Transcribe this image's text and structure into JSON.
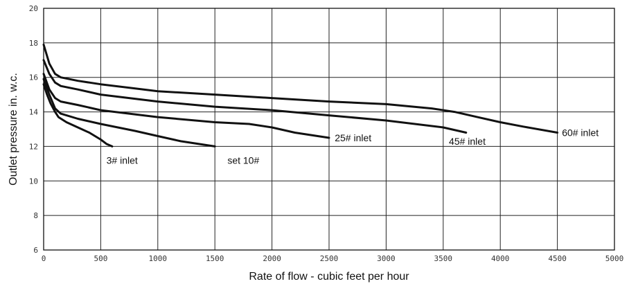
{
  "chart_data": {
    "type": "line",
    "xlabel": "Rate of flow - cubic feet per hour",
    "ylabel": "Outlet pressure in. w.c.",
    "xlim": [
      0,
      5000
    ],
    "ylim": [
      6,
      20
    ],
    "x_ticks": [
      0,
      500,
      1000,
      1500,
      2000,
      2500,
      3000,
      3500,
      4000,
      4500,
      5000
    ],
    "y_ticks": [
      6,
      8,
      10,
      12,
      14,
      16,
      18,
      20
    ],
    "grid": true,
    "series": [
      {
        "name": "3# inlet",
        "x": [
          0,
          30,
          60,
          100,
          130,
          200,
          300,
          400,
          500,
          550,
          600
        ],
        "y": [
          15.6,
          15.0,
          14.5,
          14.0,
          13.7,
          13.4,
          13.1,
          12.8,
          12.4,
          12.15,
          12.0
        ]
      },
      {
        "name": "set 10#",
        "x": [
          0,
          50,
          100,
          150,
          300,
          500,
          800,
          1000,
          1200,
          1400,
          1500
        ],
        "y": [
          15.9,
          15.0,
          14.2,
          13.9,
          13.6,
          13.3,
          12.9,
          12.6,
          12.3,
          12.1,
          12.0
        ]
      },
      {
        "name": "25# inlet",
        "x": [
          0,
          50,
          100,
          150,
          300,
          500,
          1000,
          1500,
          1800,
          2000,
          2200,
          2500
        ],
        "y": [
          16.2,
          15.3,
          14.8,
          14.6,
          14.4,
          14.1,
          13.7,
          13.4,
          13.3,
          13.1,
          12.8,
          12.5
        ]
      },
      {
        "name": "45# inlet",
        "x": [
          0,
          50,
          100,
          150,
          300,
          500,
          1000,
          1500,
          2000,
          2500,
          3000,
          3500,
          3700
        ],
        "y": [
          17.0,
          16.2,
          15.7,
          15.5,
          15.3,
          15.0,
          14.6,
          14.3,
          14.1,
          13.8,
          13.5,
          13.1,
          12.8
        ]
      },
      {
        "name": "60# inlet",
        "x": [
          0,
          50,
          100,
          150,
          300,
          500,
          1000,
          1500,
          2000,
          2500,
          3000,
          3400,
          3600,
          3800,
          4000,
          4200,
          4500
        ],
        "y": [
          17.9,
          16.8,
          16.2,
          16.0,
          15.8,
          15.6,
          15.2,
          15.0,
          14.8,
          14.6,
          14.45,
          14.2,
          14.0,
          13.7,
          13.4,
          13.15,
          12.8
        ]
      }
    ],
    "labels": [
      {
        "text": "3# inlet",
        "x": 550,
        "y": 11.2,
        "series": 0
      },
      {
        "text": "set 10#",
        "x": 1610,
        "y": 11.2,
        "series": 1
      },
      {
        "text": "25# inlet",
        "x": 2550,
        "y": 12.5,
        "series": 2
      },
      {
        "text": "45# inlet",
        "x": 3550,
        "y": 12.3,
        "series": 3
      },
      {
        "text": "60# inlet",
        "x": 4540,
        "y": 12.8,
        "series": 4
      }
    ]
  }
}
